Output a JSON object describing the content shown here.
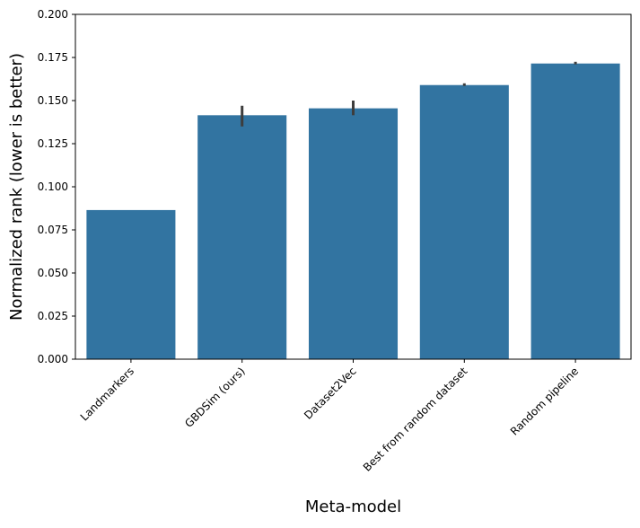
{
  "chart_data": {
    "type": "bar",
    "title": "",
    "xlabel": "Meta-model",
    "ylabel": "Normalized rank (lower is better)",
    "categories": [
      "Landmarkers",
      "GBDSim (ours)",
      "Dataset2Vec",
      "Best from random dataset",
      "Random pipeline"
    ],
    "values": [
      0.0865,
      0.1415,
      0.1455,
      0.159,
      0.1715
    ],
    "error_bars": [
      {
        "low": 0.0865,
        "high": 0.0865
      },
      {
        "low": 0.135,
        "high": 0.147
      },
      {
        "low": 0.1415,
        "high": 0.15
      },
      {
        "low": 0.1585,
        "high": 0.16
      },
      {
        "low": 0.171,
        "high": 0.1725
      }
    ],
    "ylim": [
      0,
      0.2
    ],
    "yticks": [
      "0.000",
      "0.025",
      "0.050",
      "0.075",
      "0.100",
      "0.125",
      "0.150",
      "0.175",
      "0.200"
    ],
    "grid": false,
    "bar_color": "#3274a1",
    "errorbar_color": "#3d3d3d"
  }
}
